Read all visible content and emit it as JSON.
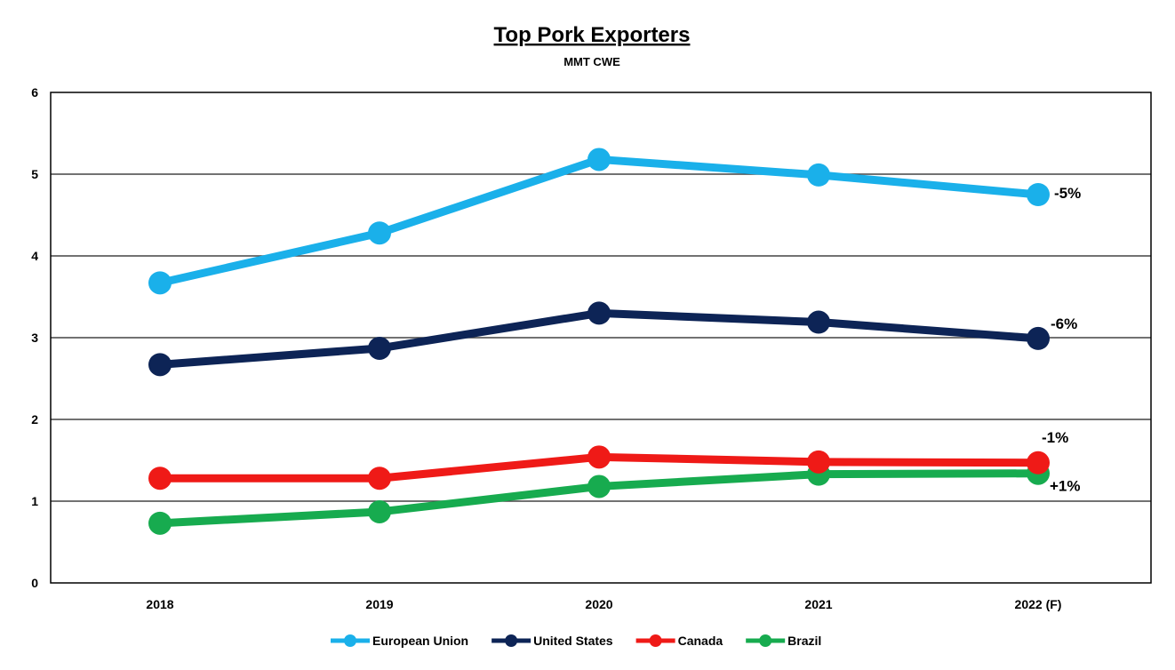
{
  "chart_data": {
    "type": "line",
    "title": "Top Pork Exporters",
    "subtitle": "MMT CWE",
    "xlabel": "",
    "ylabel": "",
    "categories": [
      "2018",
      "2019",
      "2020",
      "2021",
      "2022 (F)"
    ],
    "ylim": [
      0,
      6
    ],
    "yticks": [
      "0",
      "1",
      "2",
      "3",
      "4",
      "5",
      "6"
    ],
    "grid": true,
    "legend_position": "bottom",
    "series": [
      {
        "name": "European Union",
        "color": "#1ab0ea",
        "values": [
          3.67,
          4.28,
          5.18,
          4.99,
          4.75
        ],
        "annotation": "-5%"
      },
      {
        "name": "United States",
        "color": "#0d2456",
        "values": [
          2.67,
          2.87,
          3.3,
          3.19,
          2.99
        ],
        "annotation": "-6%"
      },
      {
        "name": "Canada",
        "color": "#ef1a17",
        "values": [
          1.28,
          1.28,
          1.54,
          1.48,
          1.47
        ],
        "annotation": "-1%"
      },
      {
        "name": "Brazil",
        "color": "#17ab4f",
        "values": [
          0.73,
          0.87,
          1.18,
          1.33,
          1.34
        ],
        "annotation": "+1%"
      }
    ]
  }
}
